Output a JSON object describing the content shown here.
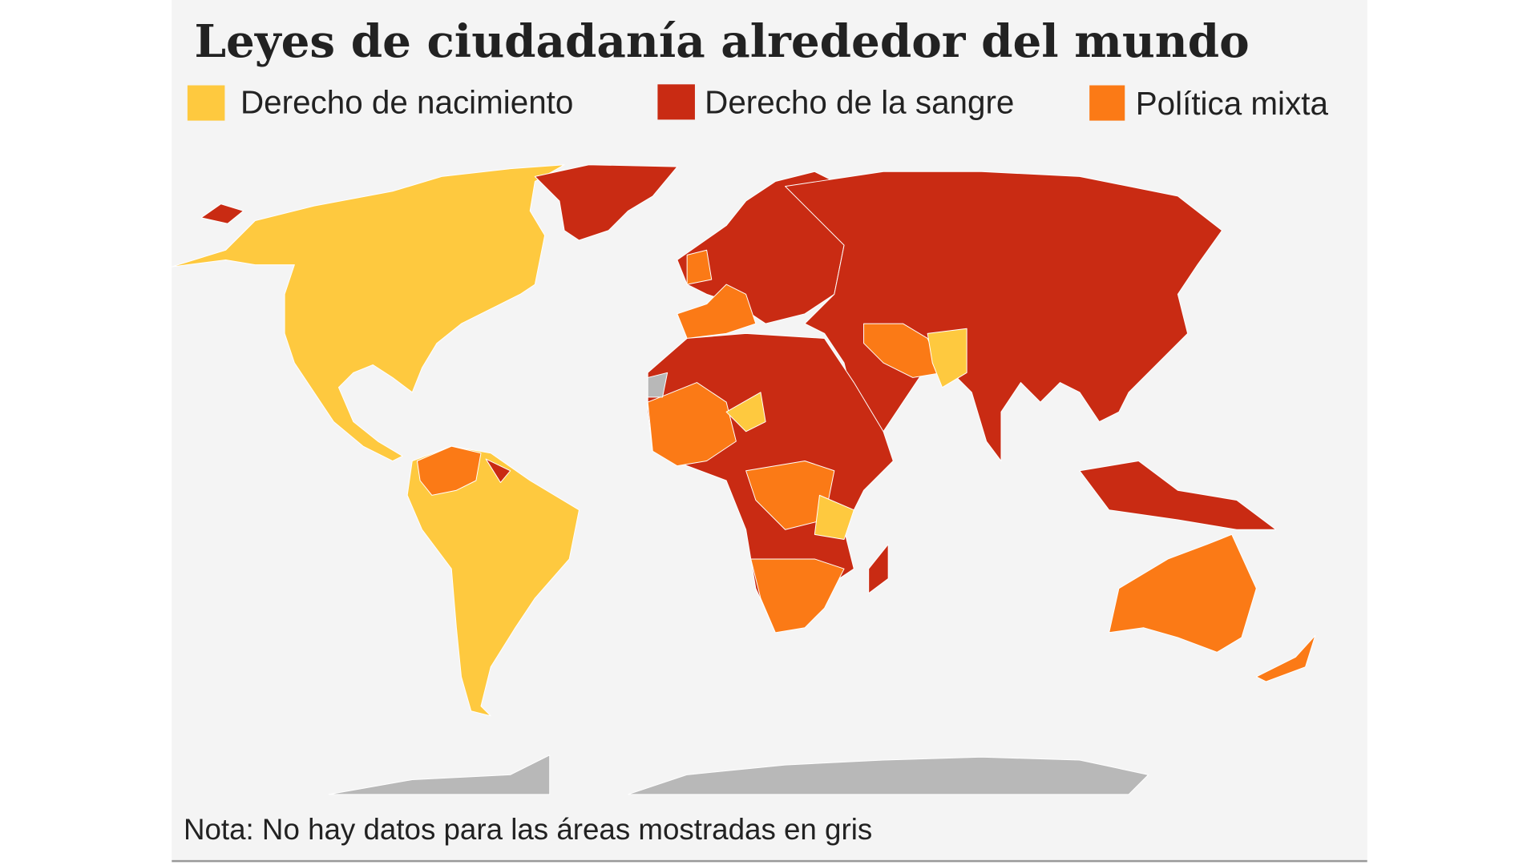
{
  "title": "Leyes de ciudadanía alrededor del mundo",
  "legend": [
    {
      "label": "Derecho de nacimiento",
      "color": "#fec93f"
    },
    {
      "label": "Derecho de la sangre",
      "color": "#c92b13"
    },
    {
      "label": "Política mixta",
      "color": "#fb7a16"
    }
  ],
  "note": "Nota: No hay datos para las áreas mostradas en gris"
}
